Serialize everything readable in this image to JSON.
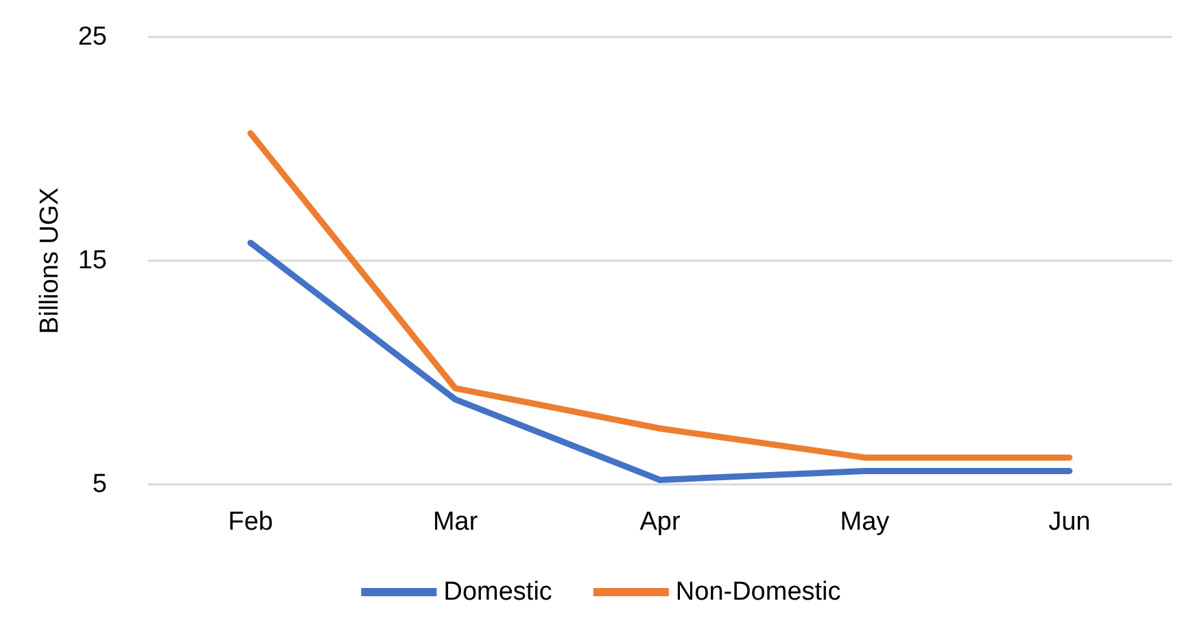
{
  "chart_data": {
    "type": "line",
    "ylabel": "Billions UGX",
    "categories": [
      "Feb",
      "Mar",
      "Apr",
      "May",
      "Jun"
    ],
    "series": [
      {
        "name": "Domestic",
        "color": "#4472c4",
        "values": [
          15.8,
          8.8,
          5.2,
          5.6,
          5.6
        ]
      },
      {
        "name": "Non-Domestic",
        "color": "#ed7d31",
        "values": [
          20.7,
          9.3,
          7.5,
          6.2,
          6.2
        ]
      }
    ],
    "ylim": [
      5,
      25
    ],
    "yticks": [
      5,
      15,
      25
    ],
    "grid": "y",
    "legend": "bottom",
    "marker": "none",
    "line_style": "solid"
  }
}
